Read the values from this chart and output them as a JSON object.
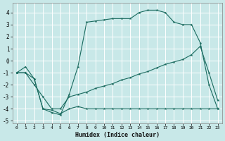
{
  "xlabel": "Humidex (Indice chaleur)",
  "bg_color": "#c8e8e8",
  "grid_color": "#ffffff",
  "line_color": "#1a6b5f",
  "xlim": [
    -0.5,
    23.5
  ],
  "ylim": [
    -5.2,
    4.8
  ],
  "xticks": [
    0,
    1,
    2,
    3,
    4,
    5,
    6,
    7,
    8,
    9,
    10,
    11,
    12,
    13,
    14,
    15,
    16,
    17,
    18,
    19,
    20,
    21,
    22,
    23
  ],
  "yticks": [
    -5,
    -4,
    -3,
    -2,
    -1,
    0,
    1,
    2,
    3,
    4
  ],
  "series1_x": [
    0,
    1,
    2,
    3,
    4,
    5,
    6,
    7,
    8,
    9,
    10,
    11,
    12,
    13,
    14,
    15,
    16,
    17,
    18,
    19,
    20,
    21,
    22,
    23
  ],
  "series1_y": [
    -1.0,
    -1.0,
    -1.5,
    -4.0,
    -4.1,
    -4.4,
    -4.0,
    -3.8,
    -4.0,
    -4.0,
    -4.0,
    -4.0,
    -4.0,
    -4.0,
    -4.0,
    -4.0,
    -4.0,
    -4.0,
    -4.0,
    -4.0,
    -4.0,
    -4.0,
    -4.0,
    -4.0
  ],
  "series2_x": [
    0,
    1,
    2,
    3,
    4,
    5,
    6,
    7,
    8,
    9,
    10,
    11,
    12,
    13,
    14,
    15,
    16,
    17,
    18,
    19,
    20,
    21,
    22,
    23
  ],
  "series2_y": [
    -1.0,
    -0.5,
    -1.5,
    -4.0,
    -4.3,
    -4.5,
    -2.8,
    -0.5,
    3.2,
    3.3,
    3.4,
    3.5,
    3.5,
    3.5,
    4.0,
    4.2,
    4.2,
    4.0,
    3.2,
    3.0,
    3.0,
    1.5,
    -2.0,
    -4.0
  ],
  "series3_x": [
    0,
    1,
    2,
    3,
    4,
    5,
    6,
    7,
    8,
    9,
    10,
    11,
    12,
    13,
    14,
    15,
    16,
    17,
    18,
    19,
    20,
    21,
    22,
    23
  ],
  "series3_y": [
    -1.0,
    -1.0,
    -2.0,
    -3.0,
    -4.0,
    -4.0,
    -3.0,
    -2.8,
    -2.6,
    -2.3,
    -2.1,
    -1.9,
    -1.6,
    -1.4,
    -1.1,
    -0.9,
    -0.6,
    -0.3,
    -0.1,
    0.1,
    0.5,
    1.2,
    -1.0,
    -3.3
  ]
}
